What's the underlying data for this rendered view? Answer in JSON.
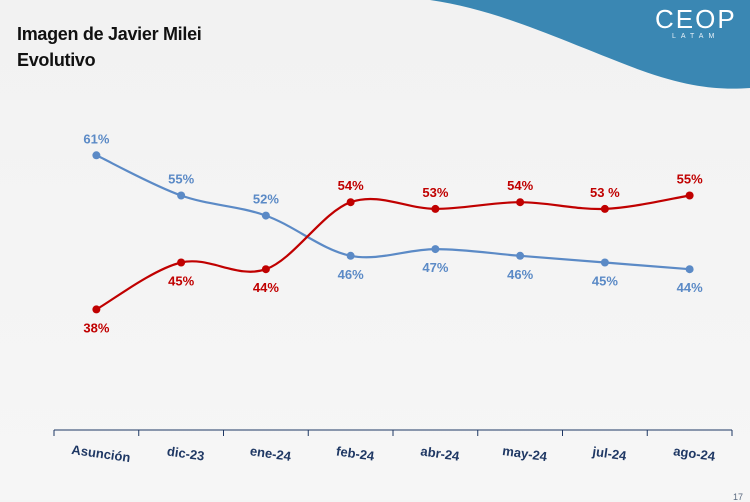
{
  "header": {
    "title": "Imagen de Javier Milei",
    "subtitle": "Evolutivo"
  },
  "logo": {
    "text": "CEOP",
    "subtext": "LATAM"
  },
  "page_number": "17",
  "colors": {
    "banner": "#3a87b3",
    "blue_series": "#5b8ac6",
    "red_series": "#c00000",
    "axis": "#1f3864"
  },
  "chart_data": {
    "type": "line",
    "title": "Imagen de Javier Milei",
    "subtitle": "Evolutivo",
    "categories": [
      "Asunción",
      "dic-23",
      "ene-24",
      "feb-24",
      "abr-24",
      "may-24",
      "jul-24",
      "ago-24"
    ],
    "series": [
      {
        "values": [
          61,
          55,
          52,
          46,
          47,
          46,
          45,
          44
        ],
        "labels": [
          "61%",
          "55%",
          "52%",
          "46%",
          "47%",
          "46%",
          "45%",
          "44%"
        ],
        "color": "#5b8ac6"
      },
      {
        "values": [
          38,
          45,
          44,
          54,
          53,
          54,
          53,
          55
        ],
        "labels": [
          "38%",
          "45%",
          "44%",
          "54%",
          "53%",
          "54%",
          "53 %",
          "55%"
        ],
        "color": "#c00000"
      }
    ],
    "ylim": [
      20,
      68
    ],
    "grid": false,
    "legend": "none",
    "smooth": true
  }
}
